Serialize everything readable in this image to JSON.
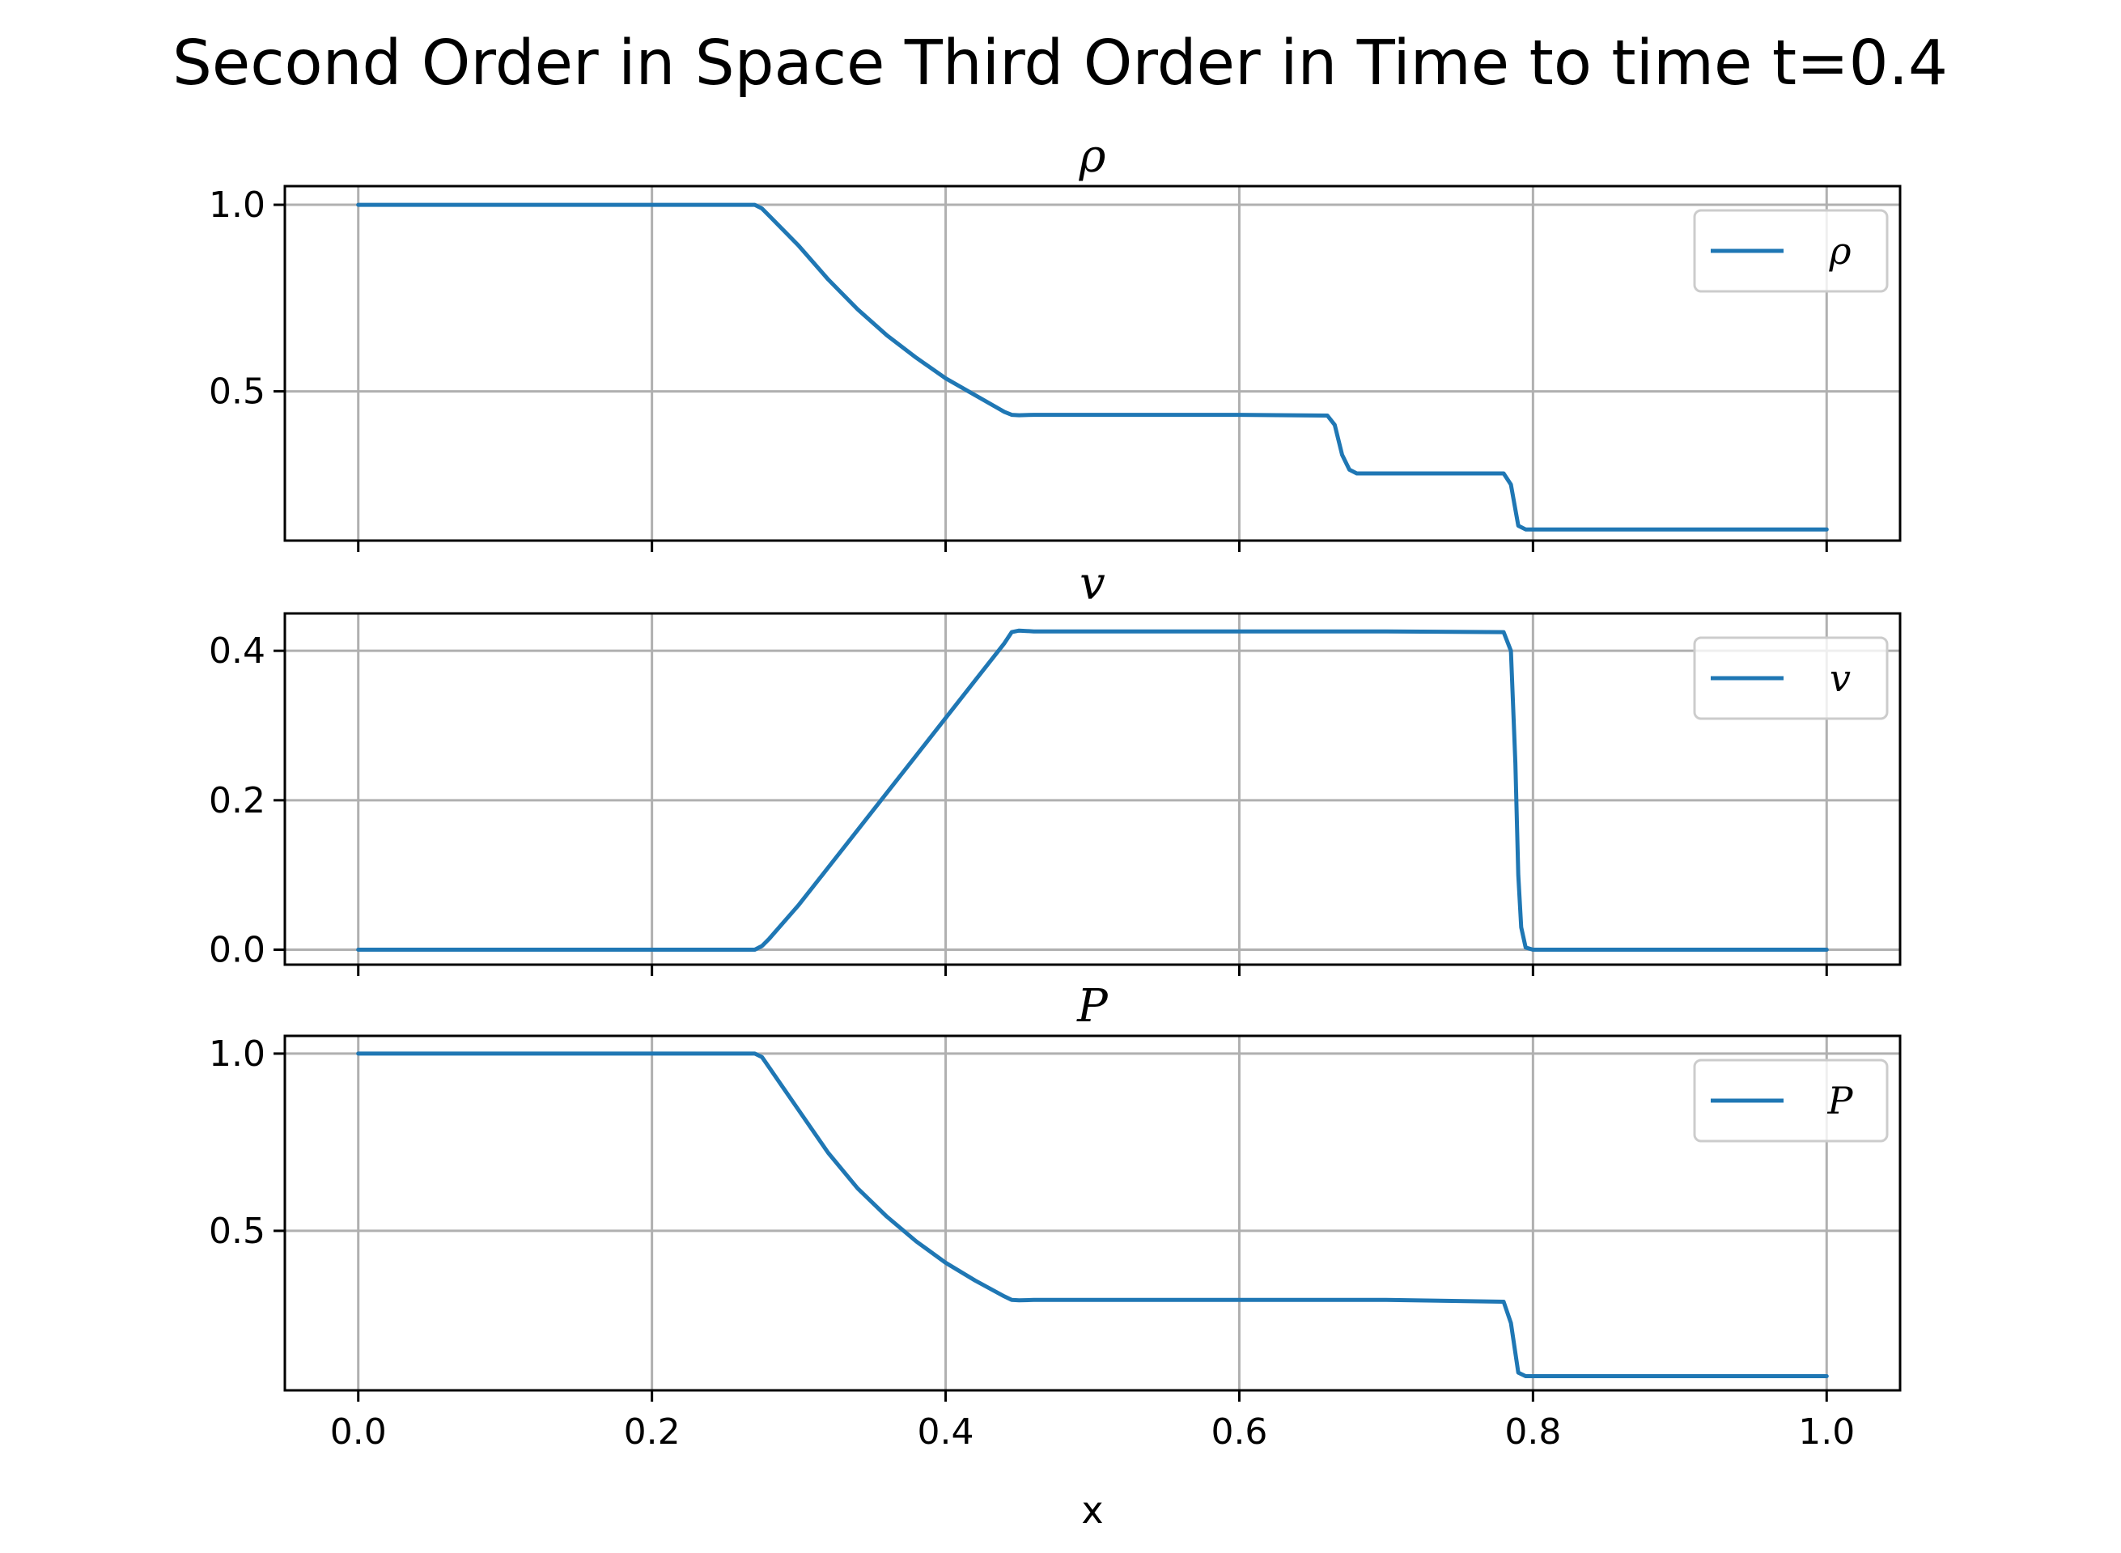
{
  "figure": {
    "title": "Second Order in Space Third Order in Time to time t=0.4",
    "xlabel": "x"
  },
  "colors": {
    "series": "#1f77b4",
    "grid": "#b0b0b0"
  },
  "chart_data": [
    {
      "type": "line",
      "title": "ρ",
      "xlim": [
        -0.05,
        1.05
      ],
      "ylim": [
        0.1,
        1.05
      ],
      "xticks": [
        0.0,
        0.2,
        0.4,
        0.6,
        0.8,
        1.0
      ],
      "yticks": [
        0.5,
        1.0
      ],
      "xtick_labels_shown": false,
      "grid": true,
      "legend": "top-right",
      "series": [
        {
          "name": "ρ",
          "x": [
            0.0,
            0.27,
            0.275,
            0.28,
            0.29,
            0.3,
            0.32,
            0.34,
            0.36,
            0.38,
            0.4,
            0.42,
            0.44,
            0.445,
            0.45,
            0.46,
            0.5,
            0.6,
            0.66,
            0.665,
            0.67,
            0.675,
            0.68,
            0.7,
            0.78,
            0.785,
            0.79,
            0.795,
            0.8,
            0.9,
            1.0
          ],
          "y": [
            1.0,
            1.0,
            0.99,
            0.97,
            0.93,
            0.89,
            0.8,
            0.72,
            0.65,
            0.59,
            0.535,
            0.49,
            0.445,
            0.437,
            0.436,
            0.437,
            0.437,
            0.437,
            0.435,
            0.41,
            0.33,
            0.29,
            0.28,
            0.28,
            0.28,
            0.25,
            0.14,
            0.13,
            0.13,
            0.13,
            0.13
          ]
        }
      ]
    },
    {
      "type": "line",
      "title": "v",
      "xlim": [
        -0.05,
        1.05
      ],
      "ylim": [
        -0.02,
        0.45
      ],
      "xticks": [
        0.0,
        0.2,
        0.4,
        0.6,
        0.8,
        1.0
      ],
      "yticks": [
        0.0,
        0.2,
        0.4
      ],
      "xtick_labels_shown": false,
      "grid": true,
      "legend": "top-right",
      "series": [
        {
          "name": "v",
          "x": [
            0.0,
            0.27,
            0.275,
            0.28,
            0.3,
            0.32,
            0.34,
            0.36,
            0.38,
            0.4,
            0.42,
            0.44,
            0.445,
            0.45,
            0.46,
            0.5,
            0.6,
            0.7,
            0.78,
            0.785,
            0.788,
            0.79,
            0.792,
            0.795,
            0.8,
            0.9,
            1.0
          ],
          "y": [
            0.0,
            0.0,
            0.005,
            0.015,
            0.06,
            0.11,
            0.16,
            0.21,
            0.26,
            0.31,
            0.36,
            0.41,
            0.425,
            0.427,
            0.426,
            0.426,
            0.426,
            0.426,
            0.425,
            0.4,
            0.25,
            0.1,
            0.03,
            0.003,
            0.0,
            0.0,
            0.0
          ]
        }
      ]
    },
    {
      "type": "line",
      "title": "P",
      "xlim": [
        -0.05,
        1.05
      ],
      "ylim": [
        0.05,
        1.05
      ],
      "xticks": [
        0.0,
        0.2,
        0.4,
        0.6,
        0.8,
        1.0
      ],
      "yticks": [
        0.5,
        1.0
      ],
      "xtick_labels": [
        "0.0",
        "0.2",
        "0.4",
        "0.6",
        "0.8",
        "1.0"
      ],
      "xtick_labels_shown": true,
      "grid": true,
      "legend": "top-right",
      "series": [
        {
          "name": "P",
          "x": [
            0.0,
            0.27,
            0.275,
            0.28,
            0.29,
            0.3,
            0.32,
            0.34,
            0.36,
            0.38,
            0.4,
            0.42,
            0.44,
            0.445,
            0.45,
            0.46,
            0.5,
            0.6,
            0.7,
            0.78,
            0.785,
            0.79,
            0.795,
            0.8,
            0.9,
            1.0
          ],
          "y": [
            1.0,
            1.0,
            0.99,
            0.96,
            0.9,
            0.84,
            0.72,
            0.62,
            0.54,
            0.47,
            0.41,
            0.36,
            0.315,
            0.305,
            0.304,
            0.305,
            0.305,
            0.305,
            0.305,
            0.3,
            0.24,
            0.1,
            0.09,
            0.09,
            0.09,
            0.09
          ]
        }
      ]
    }
  ]
}
